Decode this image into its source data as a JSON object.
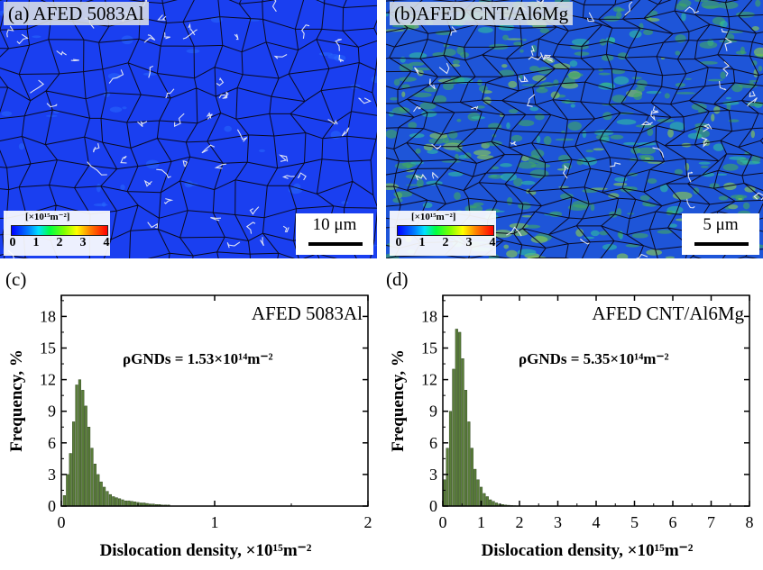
{
  "maps": [
    {
      "label": "(a) AFED 5083Al",
      "scale": "10 μm",
      "colorbar_unit": "[×10¹⁵m⁻²]",
      "colorbar_ticks": [
        "0",
        "1",
        "2",
        "3",
        "4"
      ]
    },
    {
      "label": "(b)AFED CNT/Al6Mg",
      "scale": "5 μm",
      "colorbar_unit": "[×10¹⁵m⁻²]",
      "colorbar_ticks": [
        "0",
        "1",
        "2",
        "3",
        "4"
      ]
    }
  ],
  "panel_labels": [
    "(c)",
    "(d)"
  ],
  "chart_data": [
    {
      "type": "bar",
      "title": "AFED 5083Al",
      "annotation": "ρGNDs = 1.53×10¹⁴m⁻²",
      "xlabel": "Dislocation density, ×10¹⁵m⁻²",
      "ylabel": "Frequency, %",
      "xlim": [
        0,
        2
      ],
      "ylim": [
        0,
        20
      ],
      "xticks": [
        "0",
        "1",
        "2"
      ],
      "yticks": [
        "0",
        "3",
        "6",
        "9",
        "12",
        "15",
        "18"
      ],
      "color": "#5a7d3a",
      "bin_width": 0.02,
      "x": [
        0.02,
        0.04,
        0.06,
        0.08,
        0.1,
        0.12,
        0.14,
        0.16,
        0.18,
        0.2,
        0.22,
        0.24,
        0.26,
        0.28,
        0.3,
        0.32,
        0.34,
        0.36,
        0.38,
        0.4,
        0.42,
        0.44,
        0.46,
        0.48,
        0.5,
        0.52,
        0.54,
        0.56,
        0.58,
        0.6,
        0.62,
        0.64,
        0.66,
        0.68,
        0.7
      ],
      "values": [
        1.0,
        3.0,
        5.0,
        8.0,
        11.5,
        12.0,
        11.0,
        9.5,
        7.5,
        5.5,
        4.0,
        3.0,
        2.3,
        1.8,
        1.4,
        1.1,
        0.9,
        0.8,
        0.7,
        0.6,
        0.5,
        0.5,
        0.45,
        0.4,
        0.35,
        0.3,
        0.3,
        0.25,
        0.2,
        0.2,
        0.15,
        0.15,
        0.1,
        0.1,
        0.1
      ]
    },
    {
      "type": "bar",
      "title": "AFED CNT/Al6Mg",
      "annotation": "ρGNDs = 5.35×10¹⁴m⁻²",
      "xlabel": "Dislocation density, ×10¹⁵m⁻²",
      "ylabel": "Frequency, %",
      "xlim": [
        0,
        8
      ],
      "ylim": [
        0,
        20
      ],
      "xticks": [
        "0",
        "1",
        "2",
        "3",
        "4",
        "5",
        "6",
        "7",
        "8"
      ],
      "yticks": [
        "0",
        "3",
        "6",
        "9",
        "12",
        "15",
        "18"
      ],
      "color": "#5a7d3a",
      "bin_width": 0.08,
      "x": [
        0.04,
        0.12,
        0.2,
        0.28,
        0.36,
        0.44,
        0.52,
        0.6,
        0.68,
        0.76,
        0.84,
        0.92,
        1.0,
        1.08,
        1.16,
        1.24,
        1.32,
        1.4,
        1.48,
        1.56,
        1.64,
        1.72,
        1.8,
        1.88,
        1.96
      ],
      "values": [
        2.5,
        5.5,
        9.0,
        13.0,
        16.8,
        16.5,
        14.0,
        11.0,
        8.0,
        5.5,
        3.5,
        2.5,
        1.8,
        1.2,
        0.9,
        0.6,
        0.45,
        0.3,
        0.2,
        0.15,
        0.1,
        0.08,
        0.05,
        0.04,
        0.03
      ]
    }
  ]
}
